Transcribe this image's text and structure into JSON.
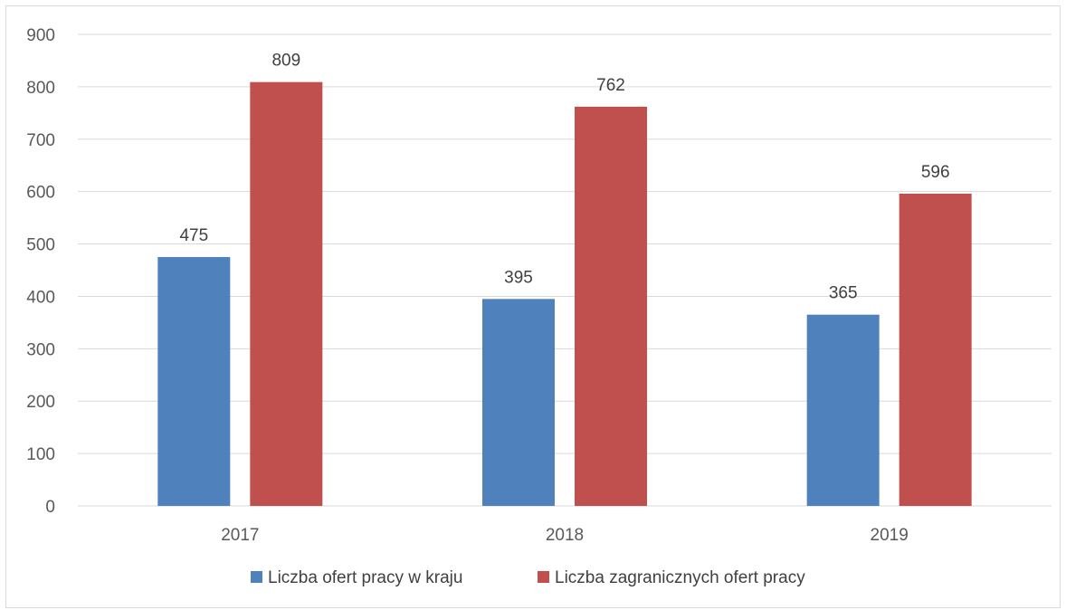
{
  "chart_data": {
    "type": "bar",
    "categories": [
      "2017",
      "2018",
      "2019"
    ],
    "series": [
      {
        "name": "Liczba ofert pracy w kraju",
        "values": [
          475,
          395,
          365
        ],
        "color": "#4f81bd"
      },
      {
        "name": "Liczba zagranicznych ofert pracy",
        "values": [
          809,
          762,
          596
        ],
        "color": "#c0504d"
      }
    ],
    "title": "",
    "xlabel": "",
    "ylabel": "",
    "ylim": [
      0,
      900
    ],
    "yticks": [
      "0",
      "100",
      "200",
      "300",
      "400",
      "500",
      "600",
      "700",
      "800",
      "900"
    ],
    "data_labels": [
      [
        "475",
        "395",
        "365"
      ],
      [
        "809",
        "762",
        "596"
      ]
    ],
    "grid": true,
    "gridline_color": "#d9d9d9",
    "legend_position": "bottom"
  }
}
